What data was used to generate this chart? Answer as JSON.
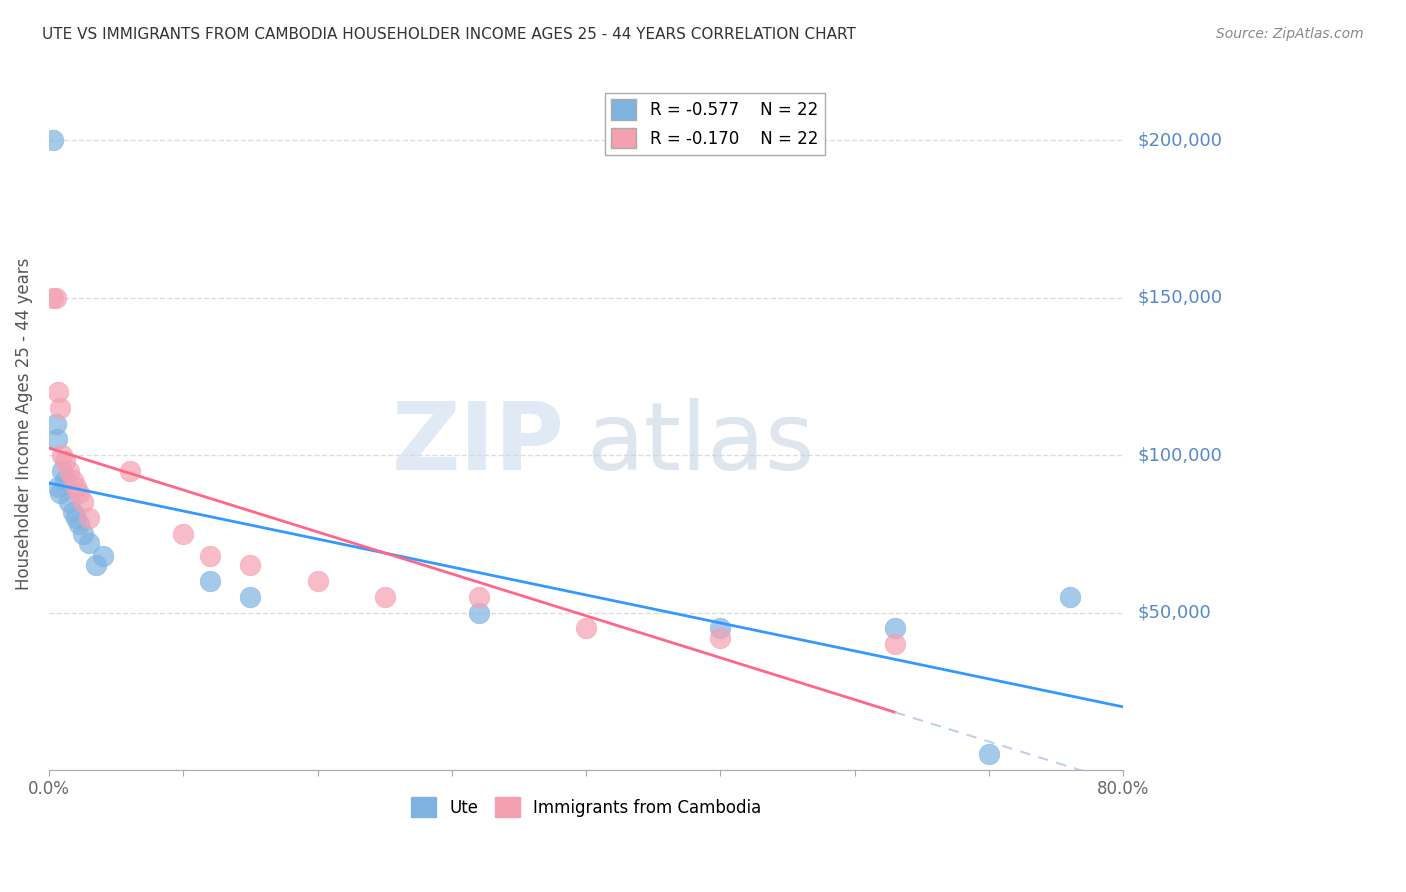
{
  "title": "UTE VS IMMIGRANTS FROM CAMBODIA HOUSEHOLDER INCOME AGES 25 - 44 YEARS CORRELATION CHART",
  "source": "Source: ZipAtlas.com",
  "ylabel": "Householder Income Ages 25 - 44 years",
  "watermark_zip": "ZIP",
  "watermark_atlas": "atlas",
  "legend_blue_r": "R = -0.577",
  "legend_blue_n": "N = 22",
  "legend_pink_r": "R = -0.170",
  "legend_pink_n": "N = 22",
  "ute_x": [
    0.003,
    0.005,
    0.006,
    0.007,
    0.008,
    0.01,
    0.012,
    0.015,
    0.018,
    0.02,
    0.022,
    0.025,
    0.03,
    0.035,
    0.04,
    0.12,
    0.15,
    0.32,
    0.5,
    0.63,
    0.7,
    0.76
  ],
  "ute_y": [
    200000,
    110000,
    105000,
    90000,
    88000,
    95000,
    92000,
    85000,
    82000,
    80000,
    78000,
    75000,
    72000,
    65000,
    68000,
    60000,
    55000,
    50000,
    45000,
    45000,
    5000,
    55000
  ],
  "camb_x": [
    0.003,
    0.005,
    0.007,
    0.008,
    0.01,
    0.012,
    0.015,
    0.018,
    0.02,
    0.022,
    0.025,
    0.03,
    0.06,
    0.1,
    0.12,
    0.15,
    0.2,
    0.25,
    0.32,
    0.4,
    0.5,
    0.63
  ],
  "camb_y": [
    150000,
    150000,
    120000,
    115000,
    100000,
    98000,
    95000,
    92000,
    90000,
    88000,
    85000,
    80000,
    95000,
    75000,
    68000,
    65000,
    60000,
    55000,
    55000,
    45000,
    42000,
    40000
  ],
  "ylim": [
    0,
    220000
  ],
  "xlim": [
    0,
    0.8
  ],
  "yticks": [
    0,
    50000,
    100000,
    150000,
    200000
  ],
  "ytick_labels": [
    "",
    "$50,000",
    "$100,000",
    "$150,000",
    "$200,000"
  ],
  "blue_color": "#7eb3e0",
  "pink_color": "#f4a0b0",
  "line_blue": "#3399ff",
  "line_pink": "#ff6688",
  "line_dashed_color": "#c0d0e8",
  "background_color": "#ffffff",
  "title_color": "#333333",
  "ytick_color": "#5588cc",
  "grid_color": "#dddddd"
}
